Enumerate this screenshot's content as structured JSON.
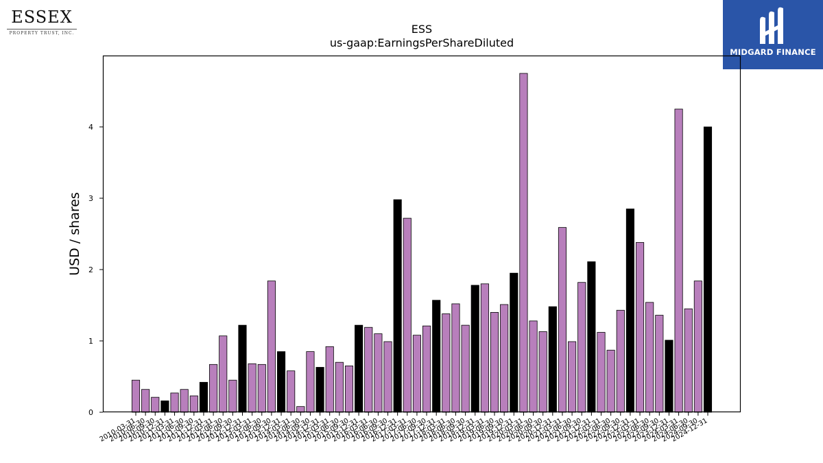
{
  "logos": {
    "left": {
      "name": "ESSEX",
      "subtitle": "PROPERTY TRUST, INC."
    },
    "right": {
      "name": "MIDGARD FINANCE"
    }
  },
  "colors": {
    "bar_default": "#b87fbc",
    "bar_q4": "#000000",
    "logo_bg": "#2a55a8"
  },
  "chart_data": {
    "type": "bar",
    "title": "ESS",
    "subtitle": "us-gaap:EarningsPerShareDiluted",
    "xlabel": "",
    "ylabel": "USD / shares",
    "ylim": [
      0,
      5.0
    ],
    "yticks": [
      0,
      1,
      2,
      3,
      4
    ],
    "grid": false,
    "legend": "none",
    "categories": [
      "2010-03-31",
      "2010-06-30",
      "2010-09-30",
      "2010-12-31",
      "2011-03-31",
      "2011-06-30",
      "2011-09-30",
      "2011-12-31",
      "2012-03-31",
      "2012-06-30",
      "2012-09-30",
      "2012-12-31",
      "2013-03-31",
      "2013-06-30",
      "2013-09-30",
      "2013-12-31",
      "2014-03-31",
      "2014-06-30",
      "2014-09-30",
      "2014-12-31",
      "2015-03-31",
      "2015-06-30",
      "2015-09-30",
      "2015-12-31",
      "2016-03-31",
      "2016-06-30",
      "2016-09-30",
      "2016-12-31",
      "2017-03-31",
      "2017-06-30",
      "2017-09-30",
      "2017-12-31",
      "2018-03-31",
      "2018-06-30",
      "2018-09-30",
      "2018-12-31",
      "2019-03-31",
      "2019-06-30",
      "2019-09-30",
      "2019-12-31",
      "2020-03-31",
      "2020-06-30",
      "2020-09-30",
      "2020-12-31",
      "2021-03-31",
      "2021-06-30",
      "2021-09-30",
      "2021-12-31",
      "2022-03-31",
      "2022-06-30",
      "2022-09-30",
      "2022-12-31",
      "2023-03-31",
      "2023-06-30",
      "2023-09-30",
      "2023-12-31",
      "2024-03-31",
      "2024-06-30",
      "2024-09-30",
      "2024-12-31"
    ],
    "values": [
      0.45,
      0.32,
      0.21,
      0.16,
      0.27,
      0.32,
      0.23,
      0.42,
      0.67,
      1.07,
      0.45,
      1.22,
      0.68,
      0.67,
      1.84,
      0.85,
      0.58,
      0.08,
      0.85,
      0.63,
      0.92,
      0.7,
      0.65,
      1.22,
      1.19,
      1.1,
      0.99,
      2.98,
      2.72,
      1.08,
      1.21,
      1.57,
      1.38,
      1.52,
      1.22,
      1.78,
      1.8,
      1.4,
      1.51,
      1.95,
      4.75,
      1.28,
      1.13,
      1.48,
      2.59,
      0.99,
      1.82,
      2.11,
      1.12,
      0.87,
      1.43,
      2.85,
      2.38,
      1.54,
      1.36,
      1.01,
      4.25,
      1.45,
      1.84,
      4.0
    ]
  }
}
